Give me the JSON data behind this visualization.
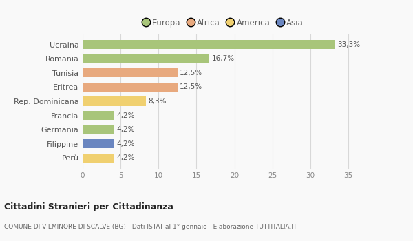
{
  "categories": [
    "Ucraina",
    "Romania",
    "Tunisia",
    "Eritrea",
    "Rep. Dominicana",
    "Francia",
    "Germania",
    "Filippine",
    "Perù"
  ],
  "values": [
    33.3,
    16.7,
    12.5,
    12.5,
    8.3,
    4.2,
    4.2,
    4.2,
    4.2
  ],
  "labels": [
    "33,3%",
    "16,7%",
    "12,5%",
    "12,5%",
    "8,3%",
    "4,2%",
    "4,2%",
    "4,2%",
    "4,2%"
  ],
  "bar_colors": [
    "#a8c57a",
    "#a8c57a",
    "#e8a97e",
    "#e8a97e",
    "#f0d070",
    "#a8c57a",
    "#a8c57a",
    "#6a86c0",
    "#f0d070"
  ],
  "legend_labels": [
    "Europa",
    "Africa",
    "America",
    "Asia"
  ],
  "legend_colors": [
    "#a8c57a",
    "#e8a97e",
    "#f0d070",
    "#6a86c0"
  ],
  "title": "Cittadini Stranieri per Cittadinanza",
  "subtitle": "COMUNE DI VILMINORE DI SCALVE (BG) - Dati ISTAT al 1° gennaio - Elaborazione TUTTITALIA.IT",
  "xlim": [
    0,
    37
  ],
  "xticks": [
    0,
    5,
    10,
    15,
    20,
    25,
    30,
    35
  ],
  "bg_color": "#f9f9f9",
  "grid_color": "#d8d8d8"
}
